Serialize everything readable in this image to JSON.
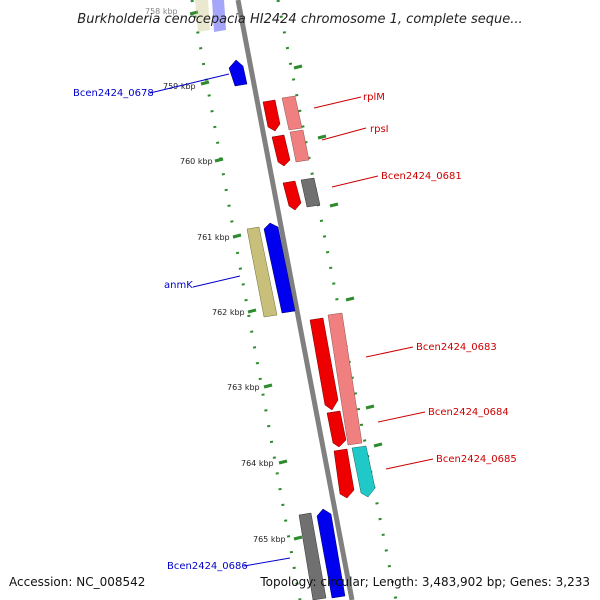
{
  "title": "Burkholderia cenocepacia HI2424 chromosome 1, complete seque...",
  "footer": {
    "accession": "Accession: NC_008542",
    "topology": "Topology: circular; Length: 3,483,902 bp; Genes: 3,233"
  },
  "ticks": [
    "758 kbp",
    "759 kbp",
    "760 kbp",
    "761 kbp",
    "762 kbp",
    "763 kbp",
    "764 kbp",
    "765 kbp"
  ],
  "gene_labels": [
    {
      "text": "Bcen2424_0678",
      "color": "#0000cc"
    },
    {
      "text": "rplM",
      "color": "#cc0000"
    },
    {
      "text": "rpsI",
      "color": "#cc0000"
    },
    {
      "text": "Bcen2424_0681",
      "color": "#cc0000"
    },
    {
      "text": "anmK",
      "color": "#0000cc"
    },
    {
      "text": "Bcen2424_0683",
      "color": "#cc0000"
    },
    {
      "text": "Bcen2424_0684",
      "color": "#cc0000"
    },
    {
      "text": "Bcen2424_0685",
      "color": "#cc0000"
    },
    {
      "text": "Bcen2424_0686",
      "color": "#0000cc"
    }
  ],
  "colors": {
    "backbone": "#808080",
    "tick": "#2e8b2e",
    "cds_forward": "#ee0000",
    "rrna_forward": "#f08080",
    "cds_reverse": "#0000ee",
    "gene_reverse": "#c8c07a",
    "pseudo": "#707070",
    "trna": "#20c8c8"
  }
}
